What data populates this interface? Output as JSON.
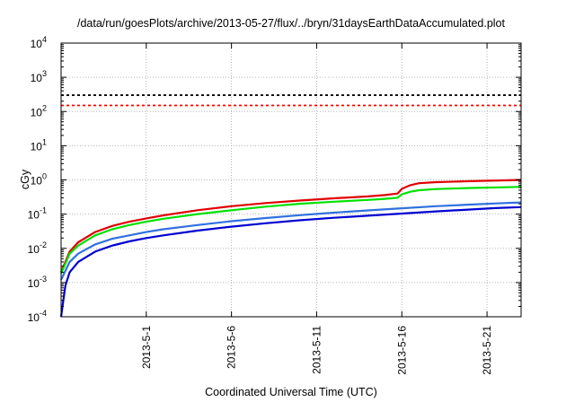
{
  "chart_data": {
    "type": "line",
    "title": "/data/run/goesPlots/archive/2013-05-27/flux/../bryn/31daysEarthDataAccumulated.plot",
    "xlabel": "Coordinated Universal Time (UTC)",
    "ylabel": "cGy",
    "x_range": [
      "2013-04-26",
      "2013-05-23"
    ],
    "x_ticks": [
      {
        "date": "2013-05-01",
        "label": "2013-5-1"
      },
      {
        "date": "2013-05-06",
        "label": "2013-5-6"
      },
      {
        "date": "2013-05-11",
        "label": "2013-5-11"
      },
      {
        "date": "2013-05-16",
        "label": "2013-5-16"
      },
      {
        "date": "2013-05-21",
        "label": "2013-5-21"
      }
    ],
    "y_scale": "log",
    "y_range": [
      0.0001,
      10000
    ],
    "y_ticks": [
      {
        "value": 0.0001,
        "base": "10",
        "exp": "-4"
      },
      {
        "value": 0.001,
        "base": "10",
        "exp": "-3"
      },
      {
        "value": 0.01,
        "base": "10",
        "exp": "-2"
      },
      {
        "value": 0.1,
        "base": "10",
        "exp": "-1"
      },
      {
        "value": 1,
        "base": "10",
        "exp": "0"
      },
      {
        "value": 10,
        "base": "10",
        "exp": "1"
      },
      {
        "value": 100,
        "base": "10",
        "exp": "2"
      },
      {
        "value": 1000,
        "base": "10",
        "exp": "3"
      },
      {
        "value": 10000,
        "base": "10",
        "exp": "4"
      }
    ],
    "grid": true,
    "threshold_lines": [
      {
        "value": 300,
        "color": "#000000",
        "style": "dashed"
      },
      {
        "value": 150,
        "color": "#ff0000",
        "style": "dashed"
      }
    ],
    "series": [
      {
        "color": "#e00000",
        "points": [
          [
            "2013-04-26",
            0.002
          ],
          [
            "2013-04-26T12:00",
            0.008
          ],
          [
            "2013-04-27",
            0.015
          ],
          [
            "2013-04-28",
            0.03
          ],
          [
            "2013-04-29",
            0.045
          ],
          [
            "2013-04-30",
            0.06
          ],
          [
            "2013-05-01",
            0.075
          ],
          [
            "2013-05-02",
            0.092
          ],
          [
            "2013-05-04",
            0.13
          ],
          [
            "2013-05-06",
            0.17
          ],
          [
            "2013-05-08",
            0.21
          ],
          [
            "2013-05-10",
            0.25
          ],
          [
            "2013-05-12",
            0.29
          ],
          [
            "2013-05-14",
            0.33
          ],
          [
            "2013-05-15",
            0.36
          ],
          [
            "2013-05-15T18:00",
            0.4
          ],
          [
            "2013-05-16",
            0.55
          ],
          [
            "2013-05-16T12:00",
            0.7
          ],
          [
            "2013-05-17",
            0.8
          ],
          [
            "2013-05-18",
            0.86
          ],
          [
            "2013-05-20",
            0.92
          ],
          [
            "2013-05-22",
            0.97
          ],
          [
            "2013-05-23",
            1.0
          ]
        ]
      },
      {
        "color": "#00e000",
        "points": [
          [
            "2013-04-26",
            0.0018
          ],
          [
            "2013-04-26T12:00",
            0.007
          ],
          [
            "2013-04-27",
            0.012
          ],
          [
            "2013-04-28",
            0.024
          ],
          [
            "2013-04-29",
            0.036
          ],
          [
            "2013-04-30",
            0.048
          ],
          [
            "2013-05-01",
            0.06
          ],
          [
            "2013-05-02",
            0.073
          ],
          [
            "2013-05-04",
            0.1
          ],
          [
            "2013-05-06",
            0.13
          ],
          [
            "2013-05-08",
            0.165
          ],
          [
            "2013-05-10",
            0.2
          ],
          [
            "2013-05-12",
            0.23
          ],
          [
            "2013-05-14",
            0.26
          ],
          [
            "2013-05-15",
            0.28
          ],
          [
            "2013-05-15T18:00",
            0.3
          ],
          [
            "2013-05-16",
            0.38
          ],
          [
            "2013-05-16T12:00",
            0.45
          ],
          [
            "2013-05-17",
            0.5
          ],
          [
            "2013-05-18",
            0.54
          ],
          [
            "2013-05-20",
            0.58
          ],
          [
            "2013-05-22",
            0.61
          ],
          [
            "2013-05-23",
            0.63
          ]
        ]
      },
      {
        "color": "#3070e0",
        "points": [
          [
            "2013-04-26",
            0.0012
          ],
          [
            "2013-04-26T12:00",
            0.004
          ],
          [
            "2013-04-27",
            0.007
          ],
          [
            "2013-04-28",
            0.013
          ],
          [
            "2013-04-29",
            0.019
          ],
          [
            "2013-04-30",
            0.024
          ],
          [
            "2013-05-01",
            0.03
          ],
          [
            "2013-05-02",
            0.036
          ],
          [
            "2013-05-04",
            0.048
          ],
          [
            "2013-05-06",
            0.062
          ],
          [
            "2013-05-08",
            0.077
          ],
          [
            "2013-05-10",
            0.093
          ],
          [
            "2013-05-12",
            0.11
          ],
          [
            "2013-05-14",
            0.128
          ],
          [
            "2013-05-16",
            0.148
          ],
          [
            "2013-05-18",
            0.17
          ],
          [
            "2013-05-20",
            0.19
          ],
          [
            "2013-05-22",
            0.21
          ],
          [
            "2013-05-23",
            0.22
          ]
        ]
      },
      {
        "color": "#0000d0",
        "points": [
          [
            "2013-04-26",
            0.0001
          ],
          [
            "2013-04-26T06:00",
            0.0008
          ],
          [
            "2013-04-26T12:00",
            0.002
          ],
          [
            "2013-04-27",
            0.004
          ],
          [
            "2013-04-28",
            0.008
          ],
          [
            "2013-04-29",
            0.012
          ],
          [
            "2013-04-30",
            0.016
          ],
          [
            "2013-05-01",
            0.02
          ],
          [
            "2013-05-02",
            0.024
          ],
          [
            "2013-05-04",
            0.033
          ],
          [
            "2013-05-06",
            0.043
          ],
          [
            "2013-05-08",
            0.054
          ],
          [
            "2013-05-10",
            0.066
          ],
          [
            "2013-05-12",
            0.078
          ],
          [
            "2013-05-14",
            0.09
          ],
          [
            "2013-05-16",
            0.104
          ],
          [
            "2013-05-18",
            0.12
          ],
          [
            "2013-05-20",
            0.136
          ],
          [
            "2013-05-21T12:00",
            0.15
          ],
          [
            "2013-05-23",
            0.16
          ]
        ]
      }
    ]
  }
}
